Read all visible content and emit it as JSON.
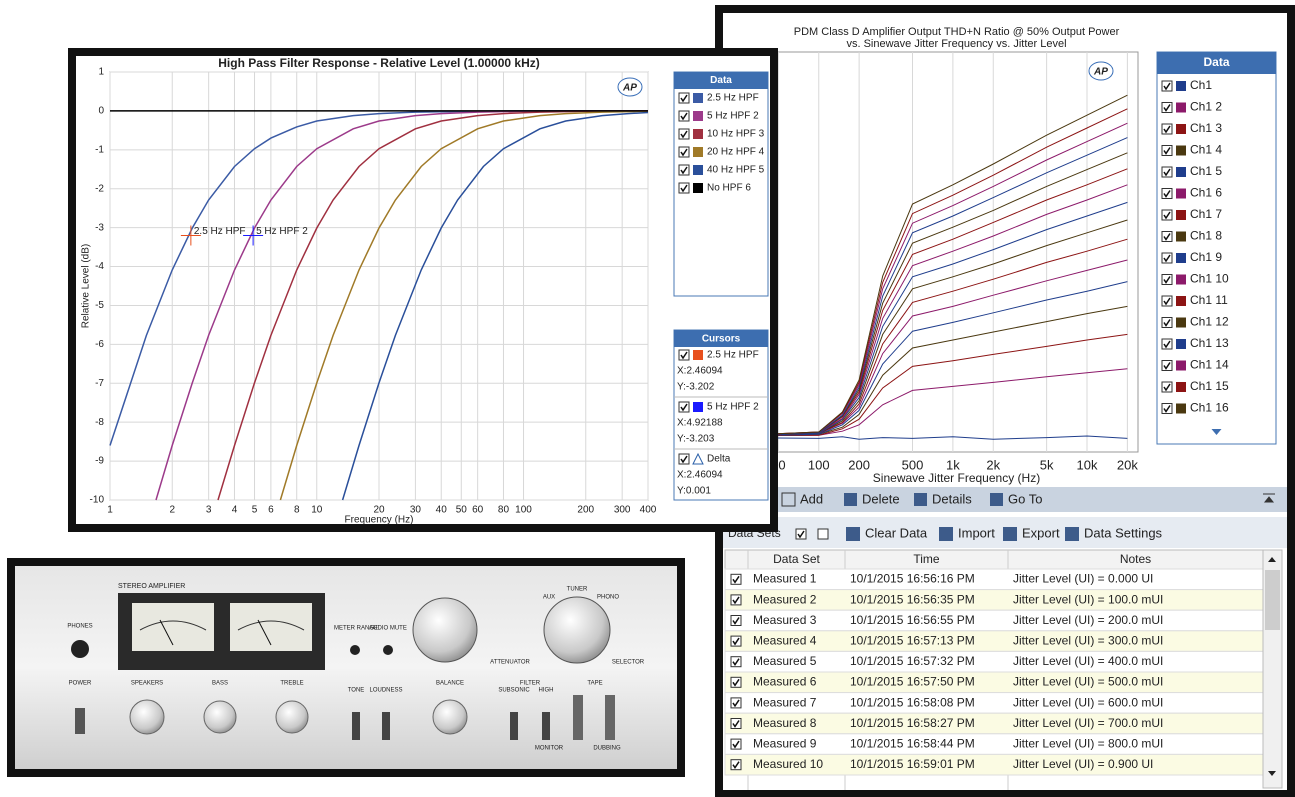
{
  "chart_data": [
    {
      "type": "line",
      "title": "High Pass Filter Response - Relative Level (1.00000 kHz)",
      "x_label": "Frequency (Hz)",
      "y_label": "Relative Level (dB)",
      "logo": "AP",
      "xscale": "log",
      "xlim": [
        1,
        400
      ],
      "ylim": [
        -10,
        1
      ],
      "grid": true,
      "xticks": [
        1,
        2,
        3,
        4,
        5,
        6,
        8,
        10,
        20,
        30,
        40,
        50,
        60,
        80,
        100,
        200,
        300,
        400
      ],
      "yticks": [
        -10,
        -9,
        -8,
        -7,
        -6,
        -5,
        -4,
        -3,
        -2,
        -1,
        0,
        1
      ],
      "legend_title": "Data",
      "series": [
        {
          "name": "2.5 Hz HPF",
          "color": "#3b5ba5",
          "x": [
            1,
            1.5,
            2,
            2.5,
            3,
            4,
            5,
            6,
            8,
            10,
            15,
            20,
            30,
            40,
            60,
            100,
            200,
            400
          ],
          "values": [
            -8.6,
            -5.77,
            -4.09,
            -3.01,
            -2.29,
            -1.43,
            -0.97,
            -0.7,
            -0.41,
            -0.26,
            -0.12,
            -0.07,
            -0.03,
            -0.02,
            -0.01,
            0,
            0,
            0
          ]
        },
        {
          "name": "5 Hz HPF 2",
          "color": "#9c3a8a",
          "x": [
            1.67,
            2,
            2.5,
            3,
            4,
            5,
            6,
            8,
            10,
            15,
            20,
            30,
            40,
            60,
            100,
            200,
            400
          ],
          "values": [
            -10,
            -8.6,
            -6.99,
            -5.77,
            -4.09,
            -3.01,
            -2.29,
            -1.43,
            -0.97,
            -0.46,
            -0.26,
            -0.12,
            -0.07,
            -0.03,
            -0.01,
            0,
            0
          ]
        },
        {
          "name": "10 Hz HPF 3",
          "color": "#a03040",
          "x": [
            3.33,
            4,
            5,
            6,
            8,
            10,
            12,
            16,
            20,
            30,
            40,
            60,
            80,
            120,
            200,
            400
          ],
          "values": [
            -10,
            -8.6,
            -6.99,
            -5.77,
            -4.09,
            -3.01,
            -2.29,
            -1.43,
            -0.97,
            -0.46,
            -0.26,
            -0.12,
            -0.07,
            -0.03,
            -0.01,
            0
          ]
        },
        {
          "name": "20 Hz HPF 4",
          "color": "#a07a28",
          "x": [
            6.67,
            8,
            10,
            12,
            16,
            20,
            24,
            32,
            40,
            60,
            80,
            120,
            160,
            240,
            400
          ],
          "values": [
            -10,
            -8.6,
            -6.99,
            -5.77,
            -4.09,
            -3.01,
            -2.29,
            -1.43,
            -0.97,
            -0.46,
            -0.26,
            -0.12,
            -0.07,
            -0.03,
            -0.01
          ]
        },
        {
          "name": "40 Hz HPF 5",
          "color": "#2a4f9a",
          "x": [
            13.33,
            16,
            20,
            24,
            32,
            40,
            48,
            64,
            80,
            120,
            160,
            240,
            320,
            400
          ],
          "values": [
            -10,
            -8.6,
            -6.99,
            -5.77,
            -4.09,
            -3.01,
            -2.29,
            -1.43,
            -0.97,
            -0.46,
            -0.26,
            -0.12,
            -0.07,
            -0.04
          ]
        },
        {
          "name": "No HPF 6",
          "color": "#000000",
          "x": [
            1,
            400
          ],
          "values": [
            0,
            0
          ]
        }
      ],
      "annotations": [
        {
          "text": "2.5 Hz HPF",
          "x": 2.46094,
          "y": -3.202,
          "color": "#e8501e"
        },
        {
          "text": "5 Hz HPF 2",
          "x": 4.92188,
          "y": -3.203,
          "color": "#1a1aff"
        }
      ]
    },
    {
      "type": "line",
      "title": "PDM Class D Amplifier Output THD+N Ratio @ 50% Output Power",
      "subtitle": "vs. Sinewave Jitter Frequency vs. Jitter Level",
      "x_label": "Sinewave Jitter Frequency (Hz)",
      "logo": "AP",
      "xscale": "log",
      "xlim": [
        20,
        24000
      ],
      "ylim": [
        -110,
        -60
      ],
      "grid": true,
      "xticks": [
        50,
        100,
        200,
        500,
        {
          "value": 1000,
          "label": "1k"
        },
        {
          "value": 2000,
          "label": "2k"
        },
        {
          "value": 5000,
          "label": "5k"
        },
        {
          "value": 10000,
          "label": "10k"
        },
        {
          "value": 20000,
          "label": "20k"
        }
      ],
      "legend_title": "Data",
      "x": [
        20,
        100,
        150,
        200,
        300,
        500,
        1000,
        2000,
        5000,
        10000,
        20000
      ],
      "series": [
        {
          "name": "Ch1",
          "color": "#1f3d8c",
          "values": [
            -108.2,
            -108.3,
            -108.1,
            -108.4,
            -108.2,
            -108.3,
            -108.1,
            -108.4,
            -108.2,
            -108.0,
            -108.3
          ]
        },
        {
          "name": "Ch1 2",
          "color": "#8c1a6a",
          "values": [
            -108,
            -107.9,
            -107.4,
            -106.6,
            -104.1,
            -102.3,
            -101.8,
            -101.3,
            -100.6,
            -100.1,
            -99.6
          ]
        },
        {
          "name": "Ch1 3",
          "color": "#8c1414",
          "values": [
            -108,
            -107.9,
            -107.1,
            -105.9,
            -102,
            -99.3,
            -98.6,
            -97.8,
            -96.8,
            -96,
            -95.3
          ]
        },
        {
          "name": "Ch1 4",
          "color": "#4a3810",
          "values": [
            -108,
            -107.8,
            -106.9,
            -105.3,
            -100.4,
            -97,
            -96,
            -95,
            -93.7,
            -92.7,
            -91.8
          ]
        },
        {
          "name": "Ch1 5",
          "color": "#1f3d8c",
          "values": [
            -108,
            -107.8,
            -106.6,
            -104.8,
            -99,
            -94.9,
            -93.8,
            -92.6,
            -91,
            -89.9,
            -88.7
          ]
        },
        {
          "name": "Ch1 6",
          "color": "#8c1a6a",
          "values": [
            -108,
            -107.7,
            -106.4,
            -104.4,
            -97.7,
            -93,
            -91.8,
            -90.4,
            -88.6,
            -87.3,
            -86
          ]
        },
        {
          "name": "Ch1 7",
          "color": "#8c1414",
          "values": [
            -108,
            -107.7,
            -106.3,
            -104,
            -96.5,
            -91.3,
            -89.9,
            -88.4,
            -86.3,
            -84.9,
            -83.4
          ]
        },
        {
          "name": "Ch1 8",
          "color": "#4a3810",
          "values": [
            -108,
            -107.7,
            -106.1,
            -103.6,
            -95.3,
            -89.6,
            -88.1,
            -86.5,
            -84.2,
            -82.6,
            -81
          ]
        },
        {
          "name": "Ch1 9",
          "color": "#1f3d8c",
          "values": [
            -108,
            -107.7,
            -105.9,
            -103.2,
            -94.3,
            -88.1,
            -86.5,
            -84.7,
            -82.2,
            -80.5,
            -78.8
          ]
        },
        {
          "name": "Ch1 10",
          "color": "#8c1a6a",
          "values": [
            -108,
            -107.6,
            -105.8,
            -102.8,
            -93.3,
            -86.7,
            -84.9,
            -83,
            -80.3,
            -78.5,
            -76.6
          ]
        },
        {
          "name": "Ch1 11",
          "color": "#8c1414",
          "values": [
            -108,
            -107.6,
            -105.6,
            -102.5,
            -92.3,
            -85.3,
            -83.4,
            -81.3,
            -78.5,
            -76.6,
            -74.6
          ]
        },
        {
          "name": "Ch1 12",
          "color": "#4a3810",
          "values": [
            -108,
            -107.6,
            -105.5,
            -102.2,
            -91.4,
            -83.9,
            -81.9,
            -79.8,
            -76.8,
            -74.7,
            -72.6
          ]
        },
        {
          "name": "Ch1 13",
          "color": "#1f3d8c",
          "values": [
            -108,
            -107.6,
            -105.4,
            -101.9,
            -90.5,
            -82.6,
            -80.5,
            -78.2,
            -75.1,
            -72.9,
            -70.7
          ]
        },
        {
          "name": "Ch1 14",
          "color": "#8c1a6a",
          "values": [
            -108,
            -107.5,
            -105.2,
            -101.6,
            -89.6,
            -81.4,
            -79.2,
            -76.8,
            -73.5,
            -71.2,
            -68.9
          ]
        },
        {
          "name": "Ch1 15",
          "color": "#8c1414",
          "values": [
            -108,
            -107.5,
            -105.1,
            -101.3,
            -88.8,
            -80.2,
            -77.9,
            -75.4,
            -71.9,
            -69.5,
            -67.1
          ]
        },
        {
          "name": "Ch1 16",
          "color": "#4a3810",
          "values": [
            -108,
            -107.5,
            -105,
            -101,
            -88,
            -79,
            -76.6,
            -74,
            -70.4,
            -67.9,
            -65.4
          ]
        }
      ]
    }
  ],
  "cursor_panel": {
    "title": "Cursors",
    "items": [
      {
        "name": "2.5 Hz HPF",
        "color": "#e8501e",
        "x": "X:2.46094",
        "y": "Y:-3.202"
      },
      {
        "name": "5 Hz HPF 2",
        "color": "#1a1aff",
        "x": "X:4.92188",
        "y": "Y:-3.203"
      },
      {
        "name": "Delta",
        "x": "X:2.46094",
        "y": "Y:0.001"
      }
    ]
  },
  "toolbar": {
    "buttons": [
      "Add",
      "Delete",
      "Details",
      "Go To"
    ]
  },
  "data_sets_bar": {
    "label": "Data Sets",
    "buttons": [
      "Clear Data",
      "Import",
      "Export",
      "Data Settings"
    ]
  },
  "table": {
    "columns": [
      "Data Set",
      "Time",
      "Notes"
    ],
    "rows": [
      [
        "Measured 1",
        "10/1/2015 16:56:16 PM",
        "Jitter Level (UI) = 0.000 UI"
      ],
      [
        "Measured 2",
        "10/1/2015 16:56:35 PM",
        "Jitter Level (UI) = 100.0 mUI"
      ],
      [
        "Measured 3",
        "10/1/2015 16:56:55 PM",
        "Jitter Level (UI) = 200.0 mUI"
      ],
      [
        "Measured 4",
        "10/1/2015 16:57:13 PM",
        "Jitter Level (UI) = 300.0 mUI"
      ],
      [
        "Measured 5",
        "10/1/2015 16:57:32 PM",
        "Jitter Level (UI) = 400.0 mUI"
      ],
      [
        "Measured 6",
        "10/1/2015 16:57:50 PM",
        "Jitter Level (UI) = 500.0 mUI"
      ],
      [
        "Measured 7",
        "10/1/2015 16:58:08 PM",
        "Jitter Level (UI) = 600.0 mUI"
      ],
      [
        "Measured 8",
        "10/1/2015 16:58:27 PM",
        "Jitter Level (UI) = 700.0 mUI"
      ],
      [
        "Measured 9",
        "10/1/2015 16:58:44 PM",
        "Jitter Level (UI) = 800.0 mUI"
      ],
      [
        "Measured 10",
        "10/1/2015 16:59:01 PM",
        "Jitter Level (UI) = 0.900 UI"
      ]
    ]
  },
  "amplifier": {
    "title": "STEREO AMPLIFIER",
    "labels": [
      "PHONES",
      "POWER",
      "SPEAKERS",
      "BASS",
      "TREBLE",
      "TONE",
      "LOUDNESS",
      "BALANCE",
      "FILTER",
      "TAPE",
      "METER RANGE",
      "AUDIO MUTE",
      "ATTENUATOR",
      "SELECTOR",
      "TUNER",
      "AUX",
      "PHONO",
      "SUBSONIC",
      "HIGH",
      "MONITOR",
      "DUBBING"
    ]
  }
}
